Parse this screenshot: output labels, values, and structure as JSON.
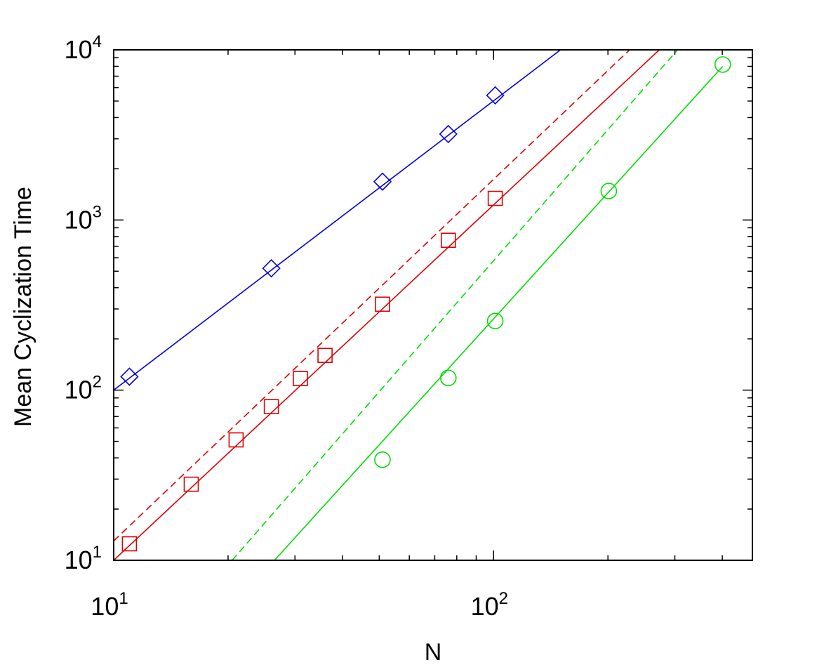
{
  "chart_data": {
    "type": "scatter",
    "title": "",
    "xlabel": "N",
    "ylabel": "Mean Cyclization Time",
    "xscale": "log",
    "yscale": "log",
    "xlim": [
      10,
      480
    ],
    "ylim": [
      10,
      10000
    ],
    "grid": false,
    "legend": "none",
    "x_ticks": [
      {
        "value": 10,
        "base": "10",
        "exp": "1"
      },
      {
        "value": 100,
        "base": "10",
        "exp": "2"
      }
    ],
    "y_ticks": [
      {
        "value": 10,
        "base": "10",
        "exp": "1"
      },
      {
        "value": 100,
        "base": "10",
        "exp": "2"
      },
      {
        "value": 1000,
        "base": "10",
        "exp": "3"
      },
      {
        "value": 10000,
        "base": "10",
        "exp": "4"
      }
    ],
    "series": [
      {
        "color": "#0000dd",
        "marker": "diamond",
        "points": {
          "x": [
            11,
            26,
            51,
            76,
            101
          ],
          "y": [
            120,
            520,
            1680,
            3200,
            5400
          ]
        },
        "lines": [
          {
            "style": "solid",
            "x": [
              10,
              150
            ],
            "y": [
              100,
              10000
            ]
          }
        ]
      },
      {
        "color": "#dd0000",
        "marker": "square",
        "points": {
          "x": [
            11,
            16,
            21,
            26,
            31,
            36,
            51,
            76,
            101
          ],
          "y": [
            12.5,
            28,
            51,
            80,
            117,
            160,
            320,
            760,
            1340
          ]
        },
        "lines": [
          {
            "style": "solid",
            "x": [
              10,
              273
            ],
            "y": [
              10,
              10000
            ]
          },
          {
            "style": "dashed",
            "x": [
              10,
              228
            ],
            "y": [
              13,
              10000
            ]
          }
        ]
      },
      {
        "color": "#00dd00",
        "marker": "circle",
        "points": {
          "x": [
            51,
            76,
            101,
            201,
            401
          ],
          "y": [
            39,
            118,
            255,
            1480,
            8200
          ]
        },
        "lines": [
          {
            "style": "solid",
            "x": [
              26.5,
              401
            ],
            "y": [
              10,
              8000
            ]
          },
          {
            "style": "dashed",
            "x": [
              20.5,
              305
            ],
            "y": [
              10,
              10000
            ]
          }
        ]
      }
    ]
  }
}
